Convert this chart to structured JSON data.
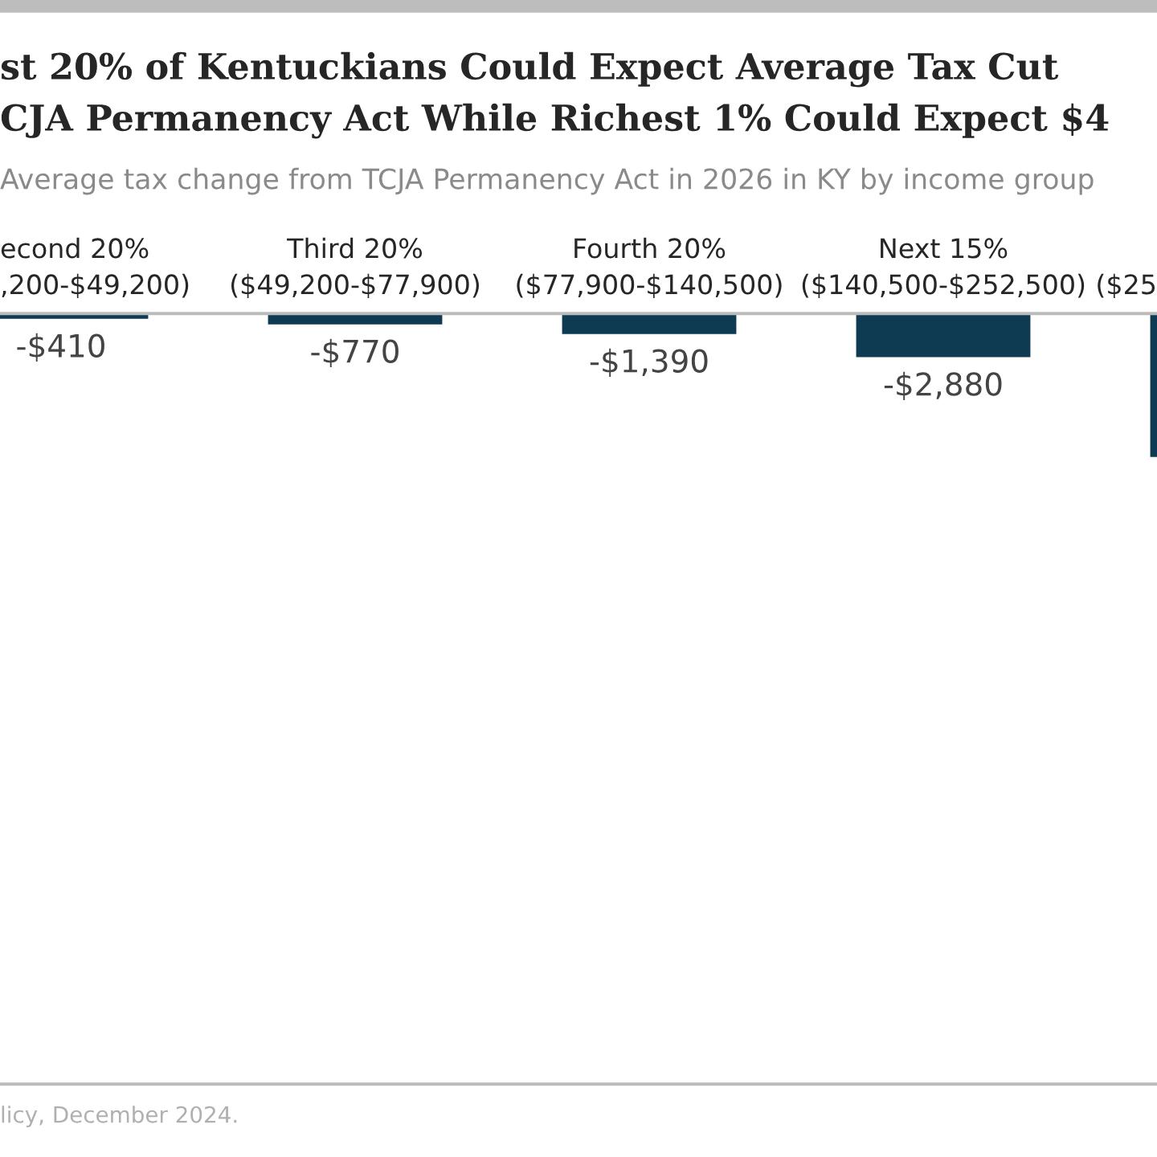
{
  "chart_data": {
    "type": "bar",
    "title": "st 20% of Kentuckians Could Expect Average Tax Cut\nCJA Permanency Act While Richest 1% Could Expect $4",
    "subtitle": "Average tax change from TCJA Permanency Act in 2026 in KY by income group",
    "categories": [
      "econd 20%\n,200-$49,200)",
      "Third 20%\n($49,200-$77,900)",
      "Fourth 20%\n($77,900-$140,500)",
      "Next 15%\n($140,500-$252,500)",
      "($25"
    ],
    "values": [
      -410,
      -770,
      -1390,
      -2880,
      -9300
    ],
    "value_labels": [
      "-$410",
      "-$770",
      "-$1,390",
      "-$2,880",
      null
    ],
    "color": "#0e3a52",
    "annotations": [
      "licy, December 2024."
    ]
  }
}
